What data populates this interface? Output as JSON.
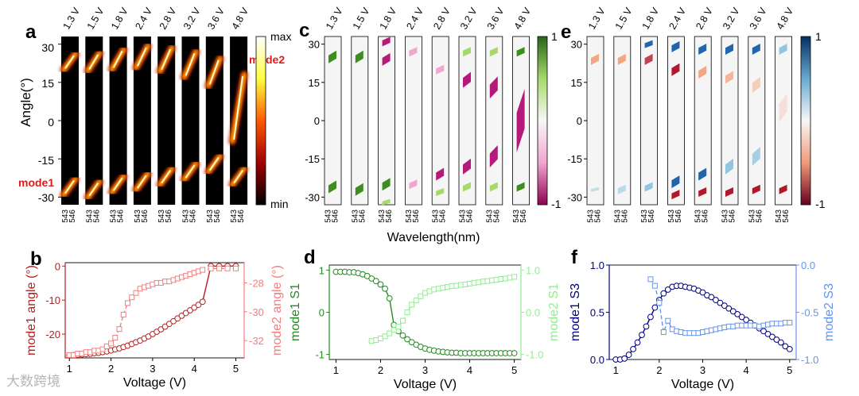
{
  "panel_labels": {
    "a": "a",
    "b": "b",
    "c": "c",
    "d": "d",
    "e": "e",
    "f": "f"
  },
  "voltages": [
    "1.3 V",
    "1.5 V",
    "1.8 V",
    "2.4 V",
    "2.8 V",
    "3.2 V",
    "3.6 V",
    "4.8 V"
  ],
  "heatmap": {
    "ylabel": "Angle(°)",
    "yticks": [
      "30",
      "15",
      "0",
      "-15",
      "-30"
    ],
    "wavelength_ticks": [
      "543",
      "546"
    ],
    "xlabel": "Wavelength(nm)"
  },
  "colorbars": {
    "a": {
      "top": "max",
      "bottom": "min"
    },
    "c": {
      "top": "1",
      "bottom": "-1"
    },
    "e": {
      "top": "1",
      "bottom": "-1"
    }
  },
  "annotations": {
    "mode1": "mode1",
    "mode2": "mode2"
  },
  "colors": {
    "mode1_b": "#b22222",
    "mode2_b": "#f08080",
    "mode1_d": "#228b22",
    "mode2_d": "#90ee90",
    "mode1_f": "#000080",
    "mode2_f": "#6495ed",
    "label_red": "#e01b1b"
  },
  "watermark": "大数跨境",
  "chart_data": [
    {
      "type": "heatmap",
      "panel": "a",
      "columns": [
        "1.3 V",
        "1.5 V",
        "1.8 V",
        "2.4 V",
        "2.8 V",
        "3.2 V",
        "3.6 V",
        "4.8 V"
      ],
      "mode2_angle": [
        23,
        23,
        24,
        25,
        24,
        22,
        19,
        5
      ],
      "mode1_angle": [
        -26,
        -27,
        -25,
        -24,
        -22,
        -20,
        -17,
        -22
      ],
      "colorbar": [
        "max",
        "min"
      ]
    },
    {
      "type": "line",
      "panel": "b",
      "xlabel": "Voltage (V)",
      "ylabel": "mode1 angle (°)",
      "ylabel2": "mode2 angle (°)",
      "xlim": [
        0.9,
        5.2
      ],
      "ylim": [
        -27,
        1
      ],
      "ylim2": [
        -33.2,
        -26.6
      ],
      "xticks": [
        "1",
        "2",
        "3",
        "4",
        "5"
      ],
      "yticks": [
        "0",
        "-10",
        "-20"
      ],
      "yticks2": [
        "-28",
        "-30",
        "-32"
      ],
      "series": [
        {
          "axis": "left",
          "marker": "circle",
          "x": [
            1.0,
            1.1,
            1.2,
            1.3,
            1.4,
            1.5,
            1.6,
            1.7,
            1.8,
            1.9,
            2.0,
            2.1,
            2.2,
            2.3,
            2.4,
            2.5,
            2.6,
            2.7,
            2.8,
            2.9,
            3.0,
            3.1,
            3.2,
            3.3,
            3.4,
            3.5,
            3.6,
            3.7,
            3.8,
            3.9,
            4.0,
            4.1,
            4.2,
            4.4,
            4.6,
            4.8,
            5.0
          ],
          "y": [
            -26.3,
            -26.2,
            -26.1,
            -26.0,
            -25.9,
            -25.8,
            -25.6,
            -25.5,
            -25.3,
            -25.1,
            -24.8,
            -24.5,
            -24.2,
            -23.8,
            -23.4,
            -22.9,
            -22.4,
            -21.9,
            -21.3,
            -20.7,
            -20.0,
            -19.3,
            -18.6,
            -17.8,
            -17.0,
            -16.2,
            -15.4,
            -14.6,
            -13.8,
            -13.0,
            -12.2,
            -11.4,
            -10.5,
            0.0,
            0.0,
            0.0,
            0.0
          ]
        },
        {
          "axis": "right",
          "marker": "square",
          "x": [
            1.0,
            1.1,
            1.2,
            1.3,
            1.4,
            1.5,
            1.6,
            1.7,
            1.8,
            1.9,
            2.0,
            2.1,
            2.2,
            2.3,
            2.4,
            2.5,
            2.6,
            2.7,
            2.8,
            2.9,
            3.0,
            3.1,
            3.2,
            3.3,
            3.4,
            3.5,
            3.6,
            3.7,
            3.8,
            3.9,
            4.0,
            4.1,
            4.2,
            4.4,
            4.6,
            4.8,
            5.0
          ],
          "y": [
            -33.0,
            -33.0,
            -32.9,
            -32.9,
            -32.8,
            -32.8,
            -32.7,
            -32.7,
            -32.6,
            -32.4,
            -32.2,
            -31.8,
            -31.2,
            -30.2,
            -29.4,
            -29.0,
            -28.7,
            -28.4,
            -28.3,
            -28.2,
            -28.1,
            -28.0,
            -28.0,
            -27.9,
            -27.9,
            -27.8,
            -27.7,
            -27.6,
            -27.5,
            -27.4,
            -27.3,
            -27.2,
            -27.1,
            -27.0,
            -27.0,
            -27.0,
            -27.0
          ]
        }
      ]
    },
    {
      "type": "heatmap",
      "panel": "c",
      "quantity": "S1",
      "columns": [
        "1.3 V",
        "1.5 V",
        "1.8 V",
        "2.4 V",
        "2.8 V",
        "3.2 V",
        "3.6 V",
        "4.8 V"
      ],
      "colorbar": [
        "1",
        "-1"
      ]
    },
    {
      "type": "line",
      "panel": "d",
      "xlabel": "Voltage (V)",
      "ylabel": "mode1 S1",
      "ylabel2": "mode2 S1",
      "xlim": [
        0.85,
        5.15
      ],
      "ylim": [
        -1.12,
        1.12
      ],
      "xticks": [
        "1",
        "2",
        "3",
        "4",
        "5"
      ],
      "yticks": [
        "1",
        "0",
        "-1"
      ],
      "yticks2": [
        "1.0",
        "0.0",
        "-1.0"
      ],
      "series": [
        {
          "axis": "left",
          "marker": "circle",
          "x": [
            1.0,
            1.1,
            1.2,
            1.3,
            1.4,
            1.5,
            1.6,
            1.7,
            1.8,
            1.9,
            2.0,
            2.1,
            2.2,
            2.3,
            2.4,
            2.5,
            2.6,
            2.7,
            2.8,
            2.9,
            3.0,
            3.1,
            3.2,
            3.3,
            3.4,
            3.5,
            3.6,
            3.7,
            3.8,
            3.9,
            4.0,
            4.1,
            4.2,
            4.3,
            4.4,
            4.5,
            4.6,
            4.7,
            4.8,
            4.9,
            5.0
          ],
          "y": [
            0.96,
            0.96,
            0.96,
            0.95,
            0.95,
            0.93,
            0.9,
            0.86,
            0.8,
            0.74,
            0.66,
            0.56,
            0.33,
            -0.3,
            -0.45,
            -0.55,
            -0.64,
            -0.71,
            -0.77,
            -0.82,
            -0.86,
            -0.89,
            -0.91,
            -0.93,
            -0.94,
            -0.95,
            -0.96,
            -0.96,
            -0.97,
            -0.97,
            -0.97,
            -0.97,
            -0.97,
            -0.97,
            -0.97,
            -0.97,
            -0.97,
            -0.97,
            -0.97,
            -0.97,
            -0.97
          ]
        },
        {
          "axis": "right",
          "marker": "square",
          "x": [
            1.8,
            1.9,
            2.0,
            2.1,
            2.2,
            2.3,
            2.4,
            2.5,
            2.6,
            2.7,
            2.8,
            2.9,
            3.0,
            3.1,
            3.2,
            3.3,
            3.4,
            3.5,
            3.6,
            3.7,
            3.8,
            3.9,
            4.0,
            4.1,
            4.2,
            4.3,
            4.4,
            4.5,
            4.6,
            4.7,
            4.8,
            4.9,
            5.0
          ],
          "y": [
            -0.68,
            -0.66,
            -0.62,
            -0.57,
            -0.5,
            -0.42,
            -0.34,
            -0.2,
            0.0,
            0.18,
            0.28,
            0.38,
            0.46,
            0.5,
            0.54,
            0.56,
            0.58,
            0.6,
            0.62,
            0.63,
            0.65,
            0.66,
            0.68,
            0.7,
            0.71,
            0.73,
            0.74,
            0.76,
            0.77,
            0.79,
            0.8,
            0.82,
            0.84
          ]
        }
      ]
    },
    {
      "type": "heatmap",
      "panel": "e",
      "quantity": "S3",
      "columns": [
        "1.3 V",
        "1.5 V",
        "1.8 V",
        "2.4 V",
        "2.8 V",
        "3.2 V",
        "3.6 V",
        "4.8 V"
      ],
      "colorbar": [
        "1",
        "-1"
      ]
    },
    {
      "type": "line",
      "panel": "f",
      "xlabel": "Voltage (V)",
      "ylabel": "mode1 S3",
      "ylabel2": "mode2 S3",
      "xlim": [
        0.85,
        5.15
      ],
      "ylim": [
        0.0,
        1.0
      ],
      "ylim2": [
        -1.0,
        0.0
      ],
      "xticks": [
        "1",
        "2",
        "3",
        "4",
        "5"
      ],
      "yticks": [
        "1.0",
        "0.5",
        "0.0"
      ],
      "yticks2": [
        "0.0",
        "-0.5",
        "-1.0"
      ],
      "series": [
        {
          "axis": "left",
          "marker": "circle",
          "x": [
            1.0,
            1.1,
            1.2,
            1.3,
            1.4,
            1.5,
            1.6,
            1.7,
            1.8,
            1.9,
            2.0,
            2.1,
            2.2,
            2.3,
            2.4,
            2.5,
            2.6,
            2.7,
            2.8,
            2.9,
            3.0,
            3.1,
            3.2,
            3.3,
            3.4,
            3.5,
            3.6,
            3.7,
            3.8,
            3.9,
            4.0,
            4.1,
            4.2,
            4.3,
            4.4,
            4.5,
            4.6,
            4.7,
            4.8,
            4.9,
            5.0
          ],
          "y": [
            0.0,
            0.0,
            0.01,
            0.05,
            0.11,
            0.18,
            0.26,
            0.35,
            0.45,
            0.55,
            0.63,
            0.7,
            0.74,
            0.77,
            0.78,
            0.78,
            0.77,
            0.76,
            0.75,
            0.73,
            0.71,
            0.68,
            0.66,
            0.63,
            0.6,
            0.57,
            0.54,
            0.51,
            0.48,
            0.45,
            0.42,
            0.39,
            0.36,
            0.33,
            0.3,
            0.27,
            0.24,
            0.21,
            0.18,
            0.14,
            0.11
          ]
        },
        {
          "axis": "right",
          "marker": "square",
          "x": [
            1.8,
            1.9,
            2.0,
            2.1,
            2.2,
            2.3,
            2.4,
            2.5,
            2.6,
            2.7,
            2.8,
            2.9,
            3.0,
            3.1,
            3.2,
            3.3,
            3.4,
            3.5,
            3.6,
            3.7,
            3.8,
            3.9,
            4.0,
            4.1,
            4.2,
            4.3,
            4.4,
            4.5,
            4.6,
            4.7,
            4.8,
            4.9,
            5.0
          ],
          "y": [
            -0.15,
            -0.22,
            -0.4,
            -0.71,
            -0.59,
            -0.68,
            -0.7,
            -0.71,
            -0.72,
            -0.72,
            -0.72,
            -0.72,
            -0.71,
            -0.7,
            -0.69,
            -0.68,
            -0.67,
            -0.66,
            -0.65,
            -0.65,
            -0.64,
            -0.64,
            -0.64,
            -0.64,
            -0.64,
            -0.65,
            -0.64,
            -0.63,
            -0.62,
            -0.62,
            -0.62,
            -0.61,
            -0.61
          ]
        }
      ]
    }
  ]
}
